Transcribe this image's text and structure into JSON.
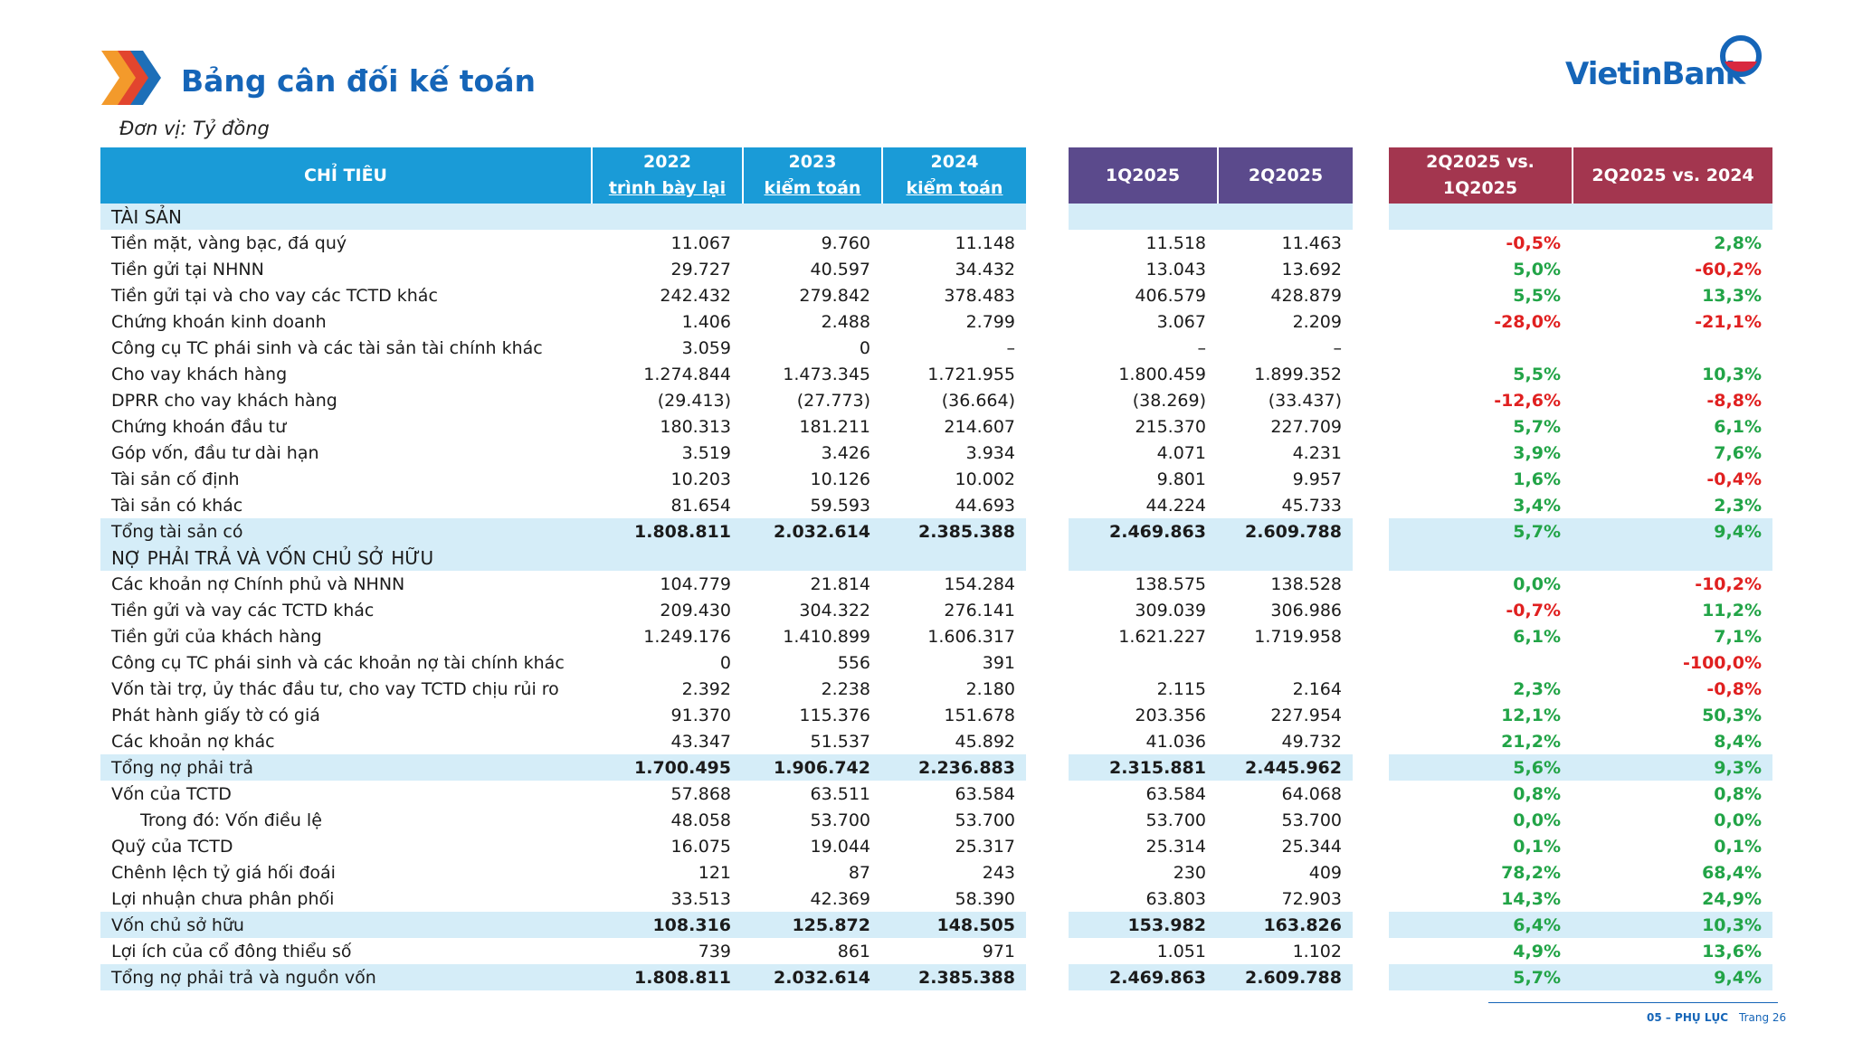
{
  "header": {
    "title": "Bảng cân đối kế toán",
    "unit": "Đơn vị: Tỷ đồng",
    "logo": "VietinBank"
  },
  "table": {
    "columns": [
      {
        "title": "CHỈ TIÊU"
      },
      {
        "title": "2022",
        "note": "trình bày lại"
      },
      {
        "title": "2023",
        "note": "kiểm toán"
      },
      {
        "title": "2024",
        "note": "kiểm toán"
      },
      {
        "title": "1Q2025"
      },
      {
        "title": "2Q2025"
      },
      {
        "title": "2Q2025 vs. 1Q2025"
      },
      {
        "title": "2Q2025 vs. 2024"
      }
    ],
    "rows": [
      {
        "label": "TÀI SẢN"
      },
      {
        "label": "Tiền mặt, vàng bạc, đá quý",
        "values": [
          "11.067",
          "9.760",
          "11.148",
          "11.518",
          "11.463",
          "-0,5%",
          "2,8%"
        ]
      },
      {
        "label": "Tiền gửi tại NHNN",
        "values": [
          "29.727",
          "40.597",
          "34.432",
          "13.043",
          "13.692",
          "5,0%",
          "-60,2%"
        ]
      },
      {
        "label": "Tiền gửi tại và cho vay các TCTD khác",
        "values": [
          "242.432",
          "279.842",
          "378.483",
          "406.579",
          "428.879",
          "5,5%",
          "13,3%"
        ]
      },
      {
        "label": "Chứng khoán kinh doanh",
        "values": [
          "1.406",
          "2.488",
          "2.799",
          "3.067",
          "2.209",
          "-28,0%",
          "-21,1%"
        ]
      },
      {
        "label": "Công cụ TC phái sinh và các tài sản tài chính khác",
        "values": [
          "3.059",
          "0",
          "–",
          "–",
          "–",
          null,
          null
        ]
      },
      {
        "label": "Cho vay khách hàng",
        "values": [
          "1.274.844",
          "1.473.345",
          "1.721.955",
          "1.800.459",
          "1.899.352",
          "5,5%",
          "10,3%"
        ]
      },
      {
        "label": "DPRR cho vay khách hàng",
        "values": [
          "(29.413)",
          "(27.773)",
          "(36.664)",
          "(38.269)",
          "(33.437)",
          "-12,6%",
          "-8,8%"
        ]
      },
      {
        "label": "Chứng khoán đầu tư",
        "values": [
          "180.313",
          "181.211",
          "214.607",
          "215.370",
          "227.709",
          "5,7%",
          "6,1%"
        ]
      },
      {
        "label": "Góp vốn, đầu tư dài hạn",
        "values": [
          "3.519",
          "3.426",
          "3.934",
          "4.071",
          "4.231",
          "3,9%",
          "7,6%"
        ]
      },
      {
        "label": "Tài sản cố định",
        "values": [
          "10.203",
          "10.126",
          "10.002",
          "9.801",
          "9.957",
          "1,6%",
          "-0,4%"
        ]
      },
      {
        "label": "Tài sản có khác",
        "values": [
          "81.654",
          "59.593",
          "44.693",
          "44.224",
          "45.733",
          "3,4%",
          "2,3%"
        ]
      },
      {
        "label": "Tổng tài sản có",
        "values": [
          "1.808.811",
          "2.032.614",
          "2.385.388",
          "2.469.863",
          "2.609.788",
          "5,7%",
          "9,4%"
        ]
      },
      {
        "label": "NỢ PHẢI TRẢ VÀ VỐN CHỦ SỞ HỮU"
      },
      {
        "label": "Các khoản nợ Chính phủ và NHNN",
        "values": [
          "104.779",
          "21.814",
          "154.284",
          "138.575",
          "138.528",
          "0,0%",
          "-10,2%"
        ]
      },
      {
        "label": "Tiền gửi và vay các TCTD khác",
        "values": [
          "209.430",
          "304.322",
          "276.141",
          "309.039",
          "306.986",
          "-0,7%",
          "11,2%"
        ]
      },
      {
        "label": "Tiền gửi của khách hàng",
        "values": [
          "1.249.176",
          "1.410.899",
          "1.606.317",
          "1.621.227",
          "1.719.958",
          "6,1%",
          "7,1%"
        ]
      },
      {
        "label": "Công cụ TC phái sinh và các khoản nợ tài chính khác",
        "values": [
          "0",
          "556",
          "391",
          null,
          null,
          null,
          "-100,0%"
        ]
      },
      {
        "label": "Vốn tài trợ, ủy thác đầu tư, cho vay TCTD chịu rủi ro",
        "values": [
          "2.392",
          "2.238",
          "2.180",
          "2.115",
          "2.164",
          "2,3%",
          "-0,8%"
        ]
      },
      {
        "label": "Phát hành giấy tờ có giá",
        "values": [
          "91.370",
          "115.376",
          "151.678",
          "203.356",
          "227.954",
          "12,1%",
          "50,3%"
        ]
      },
      {
        "label": "Các khoản nợ khác",
        "values": [
          "43.347",
          "51.537",
          "45.892",
          "41.036",
          "49.732",
          "21,2%",
          "8,4%"
        ]
      },
      {
        "label": "Tổng nợ phải trả",
        "values": [
          "1.700.495",
          "1.906.742",
          "2.236.883",
          "2.315.881",
          "2.445.962",
          "5,6%",
          "9,3%"
        ]
      },
      {
        "label": "Vốn của TCTD",
        "values": [
          "57.868",
          "63.511",
          "63.584",
          "63.584",
          "64.068",
          "0,8%",
          "0,8%"
        ]
      },
      {
        "label": "Trong đó: Vốn điều lệ",
        "values": [
          "48.058",
          "53.700",
          "53.700",
          "53.700",
          "53.700",
          "0,0%",
          "0,0%"
        ]
      },
      {
        "label": "Quỹ của TCTD",
        "values": [
          "16.075",
          "19.044",
          "25.317",
          "25.314",
          "25.344",
          "0,1%",
          "0,1%"
        ]
      },
      {
        "label": "Chênh lệch tỷ giá hối đoái",
        "values": [
          "121",
          "87",
          "243",
          "230",
          "409",
          "78,2%",
          "68,4%"
        ]
      },
      {
        "label": "Lợi nhuận chưa phân phối",
        "values": [
          "33.513",
          "42.369",
          "58.390",
          "63.803",
          "72.903",
          "14,3%",
          "24,9%"
        ]
      },
      {
        "label": "Vốn chủ sở hữu",
        "values": [
          "108.316",
          "125.872",
          "148.505",
          "153.982",
          "163.826",
          "6,4%",
          "10,3%"
        ]
      },
      {
        "label": "Lợi ích của cổ đông thiểu số",
        "values": [
          "739",
          "861",
          "971",
          "1.051",
          "1.102",
          "4,9%",
          "13,6%"
        ]
      },
      {
        "label": "Tổng nợ phải trả và nguồn vốn",
        "values": [
          "1.808.811",
          "2.032.614",
          "2.385.388",
          "2.469.863",
          "2.609.788",
          "5,7%",
          "9,4%"
        ]
      }
    ]
  },
  "footer": {
    "section": "05 – PHỤ LỤC",
    "page": "Trang 26"
  }
}
